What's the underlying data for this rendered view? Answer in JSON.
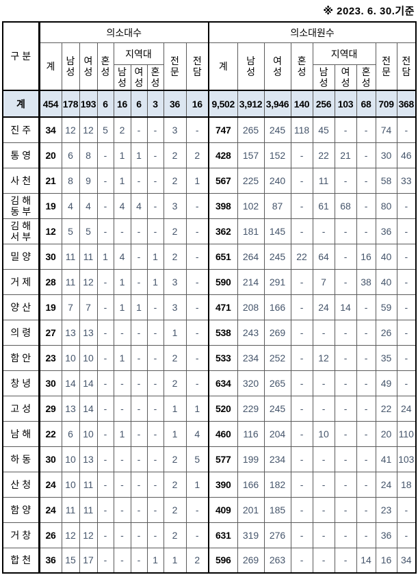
{
  "note": "※ 2023. 6. 30.기준",
  "header": {
    "group_label": "구 분",
    "sections": [
      {
        "label": "의소대수"
      },
      {
        "label": "의소대원수"
      }
    ],
    "sub": {
      "total": "계",
      "male": "남\n성",
      "female": "여\n성",
      "mixed": "혼\n성",
      "district": "지역대",
      "district_male": "남\n성",
      "district_female": "여\n성",
      "district_mixed": "혼\n성",
      "professional": "전\n문",
      "dedicated": "전\n담"
    }
  },
  "total": {
    "name": "계",
    "unit": [
      "454",
      "178",
      "193",
      "6",
      "16",
      "6",
      "3",
      "36",
      "16"
    ],
    "members": [
      "9,502",
      "3,912",
      "3,946",
      "140",
      "256",
      "103",
      "68",
      "709",
      "368"
    ]
  },
  "rows": [
    {
      "name": "진 주",
      "unit": [
        "34",
        "12",
        "12",
        "5",
        "2",
        "-",
        "-",
        "3",
        "-"
      ],
      "members": [
        "747",
        "265",
        "245",
        "118",
        "45",
        "-",
        "-",
        "74",
        "-"
      ]
    },
    {
      "name": "통 영",
      "unit": [
        "20",
        "6",
        "8",
        "-",
        "1",
        "1",
        "-",
        "2",
        "2"
      ],
      "members": [
        "428",
        "157",
        "152",
        "-",
        "22",
        "21",
        "-",
        "30",
        "46"
      ]
    },
    {
      "name": "사 천",
      "unit": [
        "21",
        "8",
        "9",
        "-",
        "1",
        "-",
        "-",
        "2",
        "1"
      ],
      "members": [
        "567",
        "225",
        "240",
        "-",
        "11",
        "-",
        "-",
        "58",
        "33"
      ]
    },
    {
      "name": "김 해\n동 부",
      "unit": [
        "19",
        "4",
        "4",
        "-",
        "4",
        "4",
        "-",
        "3",
        "-"
      ],
      "members": [
        "398",
        "102",
        "87",
        "-",
        "61",
        "68",
        "-",
        "80",
        "-"
      ]
    },
    {
      "name": "김 해\n서 부",
      "unit": [
        "12",
        "5",
        "5",
        "-",
        "-",
        "-",
        "-",
        "2",
        "-"
      ],
      "members": [
        "362",
        "181",
        "145",
        "-",
        "-",
        "-",
        "-",
        "36",
        "-"
      ]
    },
    {
      "name": "밀 양",
      "unit": [
        "30",
        "11",
        "11",
        "1",
        "4",
        "-",
        "1",
        "2",
        "-"
      ],
      "members": [
        "651",
        "264",
        "245",
        "22",
        "64",
        "-",
        "16",
        "40",
        "-"
      ]
    },
    {
      "name": "거 제",
      "unit": [
        "28",
        "11",
        "12",
        "-",
        "1",
        "-",
        "1",
        "3",
        "-"
      ],
      "members": [
        "590",
        "214",
        "291",
        "-",
        "7",
        "-",
        "38",
        "40",
        "-"
      ]
    },
    {
      "name": "양 산",
      "unit": [
        "19",
        "7",
        "7",
        "-",
        "1",
        "1",
        "-",
        "3",
        "-"
      ],
      "members": [
        "471",
        "208",
        "166",
        "-",
        "24",
        "14",
        "-",
        "59",
        "-"
      ]
    },
    {
      "name": "의 령",
      "unit": [
        "27",
        "13",
        "13",
        "-",
        "-",
        "-",
        "-",
        "1",
        "-"
      ],
      "members": [
        "538",
        "243",
        "269",
        "-",
        "-",
        "-",
        "-",
        "26",
        "-"
      ]
    },
    {
      "name": "함 안",
      "unit": [
        "23",
        "10",
        "10",
        "-",
        "1",
        "-",
        "-",
        "2",
        "-"
      ],
      "members": [
        "533",
        "234",
        "252",
        "-",
        "12",
        "-",
        "-",
        "35",
        "-"
      ]
    },
    {
      "name": "창 녕",
      "unit": [
        "30",
        "14",
        "14",
        "-",
        "-",
        "-",
        "-",
        "2",
        "-"
      ],
      "members": [
        "634",
        "320",
        "265",
        "-",
        "-",
        "-",
        "-",
        "49",
        "-"
      ]
    },
    {
      "name": "고 성",
      "unit": [
        "29",
        "13",
        "14",
        "-",
        "-",
        "-",
        "-",
        "1",
        "1"
      ],
      "members": [
        "520",
        "229",
        "245",
        "-",
        "-",
        "-",
        "-",
        "22",
        "24"
      ]
    },
    {
      "name": "남 해",
      "unit": [
        "22",
        "6",
        "10",
        "-",
        "1",
        "-",
        "-",
        "1",
        "4"
      ],
      "members": [
        "460",
        "116",
        "204",
        "-",
        "10",
        "-",
        "-",
        "20",
        "110"
      ]
    },
    {
      "name": "하 동",
      "unit": [
        "30",
        "10",
        "13",
        "-",
        "-",
        "-",
        "-",
        "2",
        "5"
      ],
      "members": [
        "577",
        "199",
        "234",
        "-",
        "-",
        "-",
        "-",
        "41",
        "103"
      ]
    },
    {
      "name": "산 청",
      "unit": [
        "24",
        "10",
        "11",
        "-",
        "-",
        "-",
        "-",
        "2",
        "1"
      ],
      "members": [
        "390",
        "166",
        "182",
        "-",
        "-",
        "-",
        "-",
        "24",
        "18"
      ]
    },
    {
      "name": "함 양",
      "unit": [
        "24",
        "11",
        "11",
        "-",
        "-",
        "-",
        "-",
        "2",
        "-"
      ],
      "members": [
        "409",
        "201",
        "185",
        "-",
        "-",
        "-",
        "-",
        "23",
        "-"
      ]
    },
    {
      "name": "거 창",
      "unit": [
        "26",
        "12",
        "12",
        "-",
        "-",
        "-",
        "-",
        "2",
        "-"
      ],
      "members": [
        "631",
        "319",
        "276",
        "-",
        "-",
        "-",
        "-",
        "36",
        "-"
      ]
    },
    {
      "name": "합 천",
      "unit": [
        "36",
        "15",
        "17",
        "-",
        "-",
        "-",
        "1",
        "1",
        "2"
      ],
      "members": [
        "596",
        "269",
        "263",
        "-",
        "-",
        "-",
        "14",
        "16",
        "34"
      ]
    }
  ],
  "colors": {
    "total_row_bg": "#dce6f1",
    "number_text": "#44546a",
    "grid_line": "#595959",
    "strong_line": "#000000"
  }
}
